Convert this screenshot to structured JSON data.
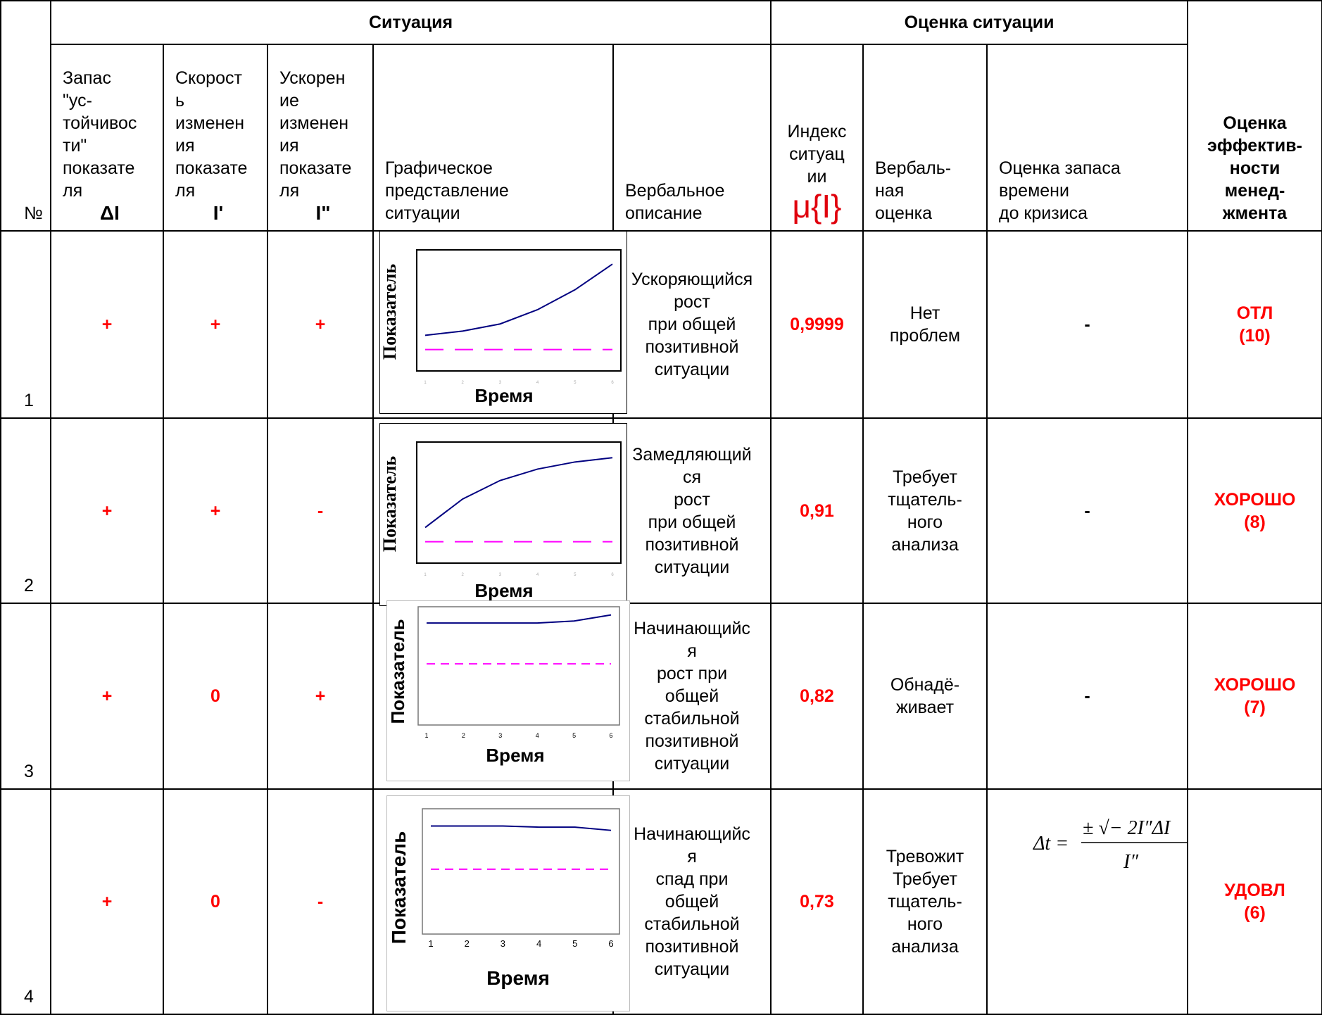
{
  "header": {
    "situation": "Ситуация",
    "assessment": "Оценка ситуации",
    "no": "№",
    "reserve": "Запас\n\"ус-\nтойчивос\nти\"\nпоказате\nля",
    "reserve_symbol": "ΔI",
    "speed": "Скорост\nь\nизменен\nия\nпоказате\nля",
    "speed_symbol": "I'",
    "accel": "Ускорен\nие\nизменен\nия\nпоказате\nля",
    "accel_symbol": "I\"",
    "graphic": "Графическое\nпредставление\nситуации",
    "verbal_desc": "Вербальное\nописание",
    "index": "Индекс\nситуац\nии",
    "index_symbol": "μ{I}",
    "verbal_eval": "Вербаль-\nная\nоценка",
    "time_reserve": "Оценка запаса\nвремени\n до кризиса",
    "efficiency": "Оценка\nэффектив-\nности\nменед-\nжмента"
  },
  "chart_labels": {
    "y": "Показатель",
    "x": "Время",
    "x_ticks": [
      "1",
      "2",
      "3",
      "4",
      "5",
      "6"
    ]
  },
  "rows": [
    {
      "no": "1",
      "reserve": "+",
      "speed": "+",
      "accel": "+",
      "verbal": "Ускоряющийся\nрост\nпри общей\nпозитивной\nситуации",
      "index": "0,9999",
      "eval": "Нет\nпроблем",
      "time": "-",
      "eff": "ОТЛ\n(10)",
      "chart": {
        "indicator": [
          1.0,
          1.3,
          1.8,
          2.8,
          4.2,
          6.0
        ],
        "baseline": 0,
        "ylim": [
          -1.5,
          7
        ]
      }
    },
    {
      "no": "2",
      "reserve": "+",
      "speed": "+",
      "accel": "-",
      "verbal": "Замедляющий\nся\nрост\nпри общей\nпозитивной\nситуации",
      "index": "0,91",
      "eval": "Требует\nтщатель-\nного\nанализа",
      "time": "-",
      "eff": "ХОРОШО\n(8)",
      "chart": {
        "indicator": [
          1.0,
          3.0,
          4.3,
          5.1,
          5.6,
          5.9
        ],
        "baseline": 0,
        "ylim": [
          -1.5,
          7
        ]
      }
    },
    {
      "no": "3",
      "reserve": "+",
      "speed": "0",
      "accel": "+",
      "verbal": "Начинающийс\nя\nрост при\nобщей\nстабильной\nпозитивной\nситуации",
      "index": "0,82",
      "eval": "Обнадё-\nживает",
      "time": "-",
      "eff": "ХОРОШО\n(7)",
      "chart": {
        "indicator": [
          5.0,
          5.0,
          5.0,
          5.0,
          5.1,
          5.4
        ],
        "baseline": 3,
        "ylim": [
          0,
          5.8
        ]
      }
    },
    {
      "no": "4",
      "reserve": "+",
      "speed": "0",
      "accel": "-",
      "verbal": "Начинающийс\nя\nспад при\nобщей\nстабильной\nпозитивной\nситуации",
      "index": "0,73",
      "eval": "Тревожит\nТребует\nтщатель-\nного\nанализа",
      "time": "",
      "eff": "УДОВЛ\n(6)",
      "chart": {
        "indicator": [
          5.0,
          5.0,
          5.0,
          4.95,
          4.95,
          4.8
        ],
        "baseline": 3,
        "ylim": [
          0,
          5.8
        ]
      }
    }
  ],
  "formula": {
    "lhs": "Δt =",
    "numerator": "± √− 2I″ΔI",
    "denominator": "I″"
  },
  "colors": {
    "accent_red": "#ff0000",
    "line": "#000080",
    "baseline": "#ff00ff"
  }
}
